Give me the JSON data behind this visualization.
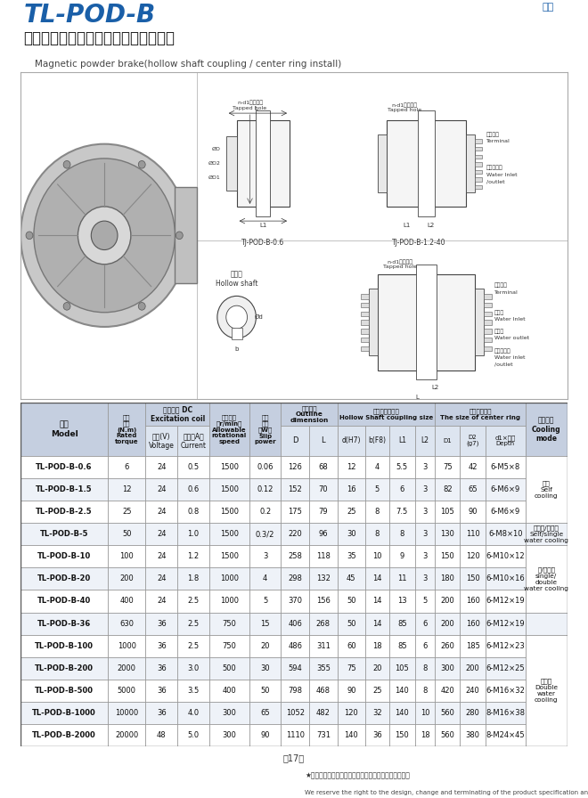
{
  "title_line1": "TL-POD-B",
  "title_line2": "（空心軸聯結、止口支擐）磁粉制動器",
  "title_line3": "Magnetic powder brake(hollow shaft coupling / center ring install)",
  "page_number": "－17－",
  "footer_text1": "★本公司保留產品規格尺寸尺寸設計變更或停用之權利。",
  "footer_text2": "We reserve the right to the design, change and terminating of the product specification and size.",
  "rows": [
    [
      "TL-POD-B-0.6",
      "6",
      "24",
      "0.5",
      "1500",
      "0.06",
      "126",
      "68",
      "12",
      "4",
      "5.5",
      "3",
      "75",
      "42",
      "6-M5×8"
    ],
    [
      "TL-POD-B-1.5",
      "12",
      "24",
      "0.6",
      "1500",
      "0.12",
      "152",
      "70",
      "16",
      "5",
      "6",
      "3",
      "82",
      "65",
      "6-M6×9"
    ],
    [
      "TL-POD-B-2.5",
      "25",
      "24",
      "0.8",
      "1500",
      "0.2",
      "175",
      "79",
      "25",
      "8",
      "7.5",
      "3",
      "105",
      "90",
      "6-M6×9"
    ],
    [
      "TL-POD-B-5",
      "50",
      "24",
      "1.0",
      "1500",
      "0.3/2",
      "220",
      "96",
      "30",
      "8",
      "8",
      "3",
      "130",
      "110",
      "6-M8×10"
    ],
    [
      "TL-POD-B-10",
      "100",
      "24",
      "1.2",
      "1500",
      "3",
      "258",
      "118",
      "35",
      "10",
      "9",
      "3",
      "150",
      "120",
      "6-M10×12"
    ],
    [
      "TL-POD-B-20",
      "200",
      "24",
      "1.8",
      "1000",
      "4",
      "298",
      "132",
      "45",
      "14",
      "11",
      "3",
      "180",
      "150",
      "6-M10×16"
    ],
    [
      "TL-POD-B-40",
      "400",
      "24",
      "2.5",
      "1000",
      "5",
      "370",
      "156",
      "50",
      "14",
      "13",
      "5",
      "200",
      "160",
      "6-M12×19"
    ],
    [
      "TL-POD-B-36",
      "630",
      "36",
      "2.5",
      "750",
      "15",
      "406",
      "268",
      "50",
      "14",
      "85",
      "6",
      "200",
      "160",
      "6-M12×19"
    ],
    [
      "TL-POD-B-100",
      "1000",
      "36",
      "2.5",
      "750",
      "20",
      "486",
      "311",
      "60",
      "18",
      "85",
      "6",
      "260",
      "185",
      "6-M12×23"
    ],
    [
      "TL-POD-B-200",
      "2000",
      "36",
      "3.0",
      "500",
      "30",
      "594",
      "355",
      "75",
      "20",
      "105",
      "8",
      "300",
      "200",
      "6-M12×25"
    ],
    [
      "TL-POD-B-500",
      "5000",
      "36",
      "3.5",
      "400",
      "50",
      "798",
      "468",
      "90",
      "25",
      "140",
      "8",
      "420",
      "240",
      "6-M16×32"
    ],
    [
      "TL-POD-B-1000",
      "10000",
      "36",
      "4.0",
      "300",
      "65",
      "1052",
      "482",
      "120",
      "32",
      "140",
      "10",
      "560",
      "280",
      "8-M16×38"
    ],
    [
      "TL-POD-B-2000",
      "20000",
      "48",
      "5.0",
      "300",
      "90",
      "1110",
      "731",
      "140",
      "36",
      "150",
      "18",
      "560",
      "380",
      "8-M24×45"
    ]
  ],
  "cooling_col": [
    [
      0,
      2,
      "自冷\nSelf\ncooling"
    ],
    [
      3,
      3,
      "自冷單/雙水冷\nSelf/single\nwater cooling"
    ],
    [
      4,
      6,
      "單/雙水冷\nsingle/\ndouble\nwater cooling"
    ],
    [
      7,
      7,
      ""
    ],
    [
      8,
      12,
      "雙水冷\nDouble\nwater\ncooling"
    ]
  ],
  "bg_color": "#ffffff",
  "header_bg": "#c5cfe0",
  "header_bg2": "#dde5f0",
  "border_color": "#999999",
  "title_color1": "#1a5fa8",
  "title_color2": "#1a1a1a"
}
